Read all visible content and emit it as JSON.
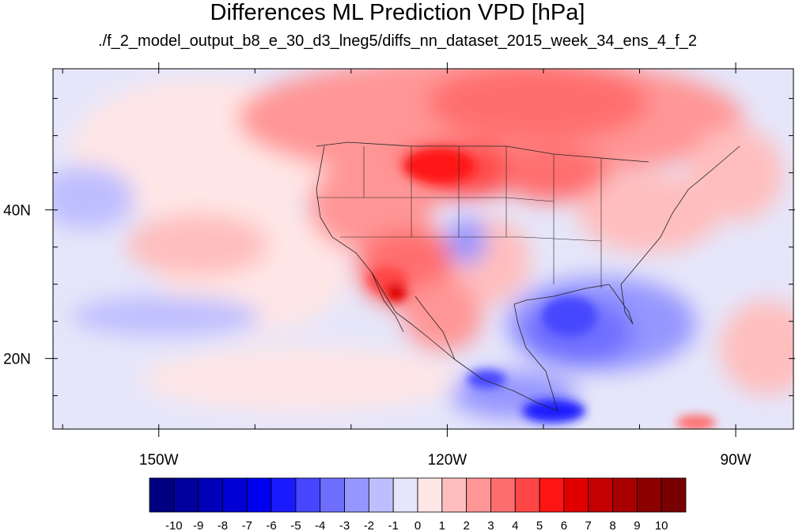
{
  "title": "Differences ML Prediction VPD [hPa]",
  "subtitle": "./f_2_model_output_b8_e_30_d3_lneg5/diffs_nn_dataset_2015_week_34_ens_4_f_2",
  "map": {
    "lon_range": [
      -161,
      -84
    ],
    "lat_range": [
      10.5,
      59
    ],
    "lon_ticks": [
      {
        "value": -150,
        "label": "150W"
      },
      {
        "value": -120,
        "label": "120W"
      },
      {
        "value": -90,
        "label": "90W"
      }
    ],
    "lat_ticks": [
      {
        "value": 40,
        "label": "40N"
      },
      {
        "value": 20,
        "label": "20N"
      }
    ],
    "border_color": "#222222"
  },
  "colorbar": {
    "labels": [
      "-10",
      "-9",
      "-8",
      "-7",
      "-6",
      "-5",
      "-4",
      "-3",
      "-2",
      "-1",
      "0",
      "1",
      "2",
      "3",
      "4",
      "5",
      "6",
      "7",
      "8",
      "9",
      "10"
    ],
    "colors": [
      "#000080",
      "#00009c",
      "#0000b8",
      "#0000d4",
      "#0000f0",
      "#1a1aff",
      "#4646ff",
      "#6e6eff",
      "#9696ff",
      "#bebeff",
      "#e6e6fa",
      "#ffe6e6",
      "#ffbebe",
      "#ff9696",
      "#ff6e6e",
      "#ff4646",
      "#ff1414",
      "#e00000",
      "#c40000",
      "#a80000",
      "#8c0000",
      "#780000"
    ]
  }
}
